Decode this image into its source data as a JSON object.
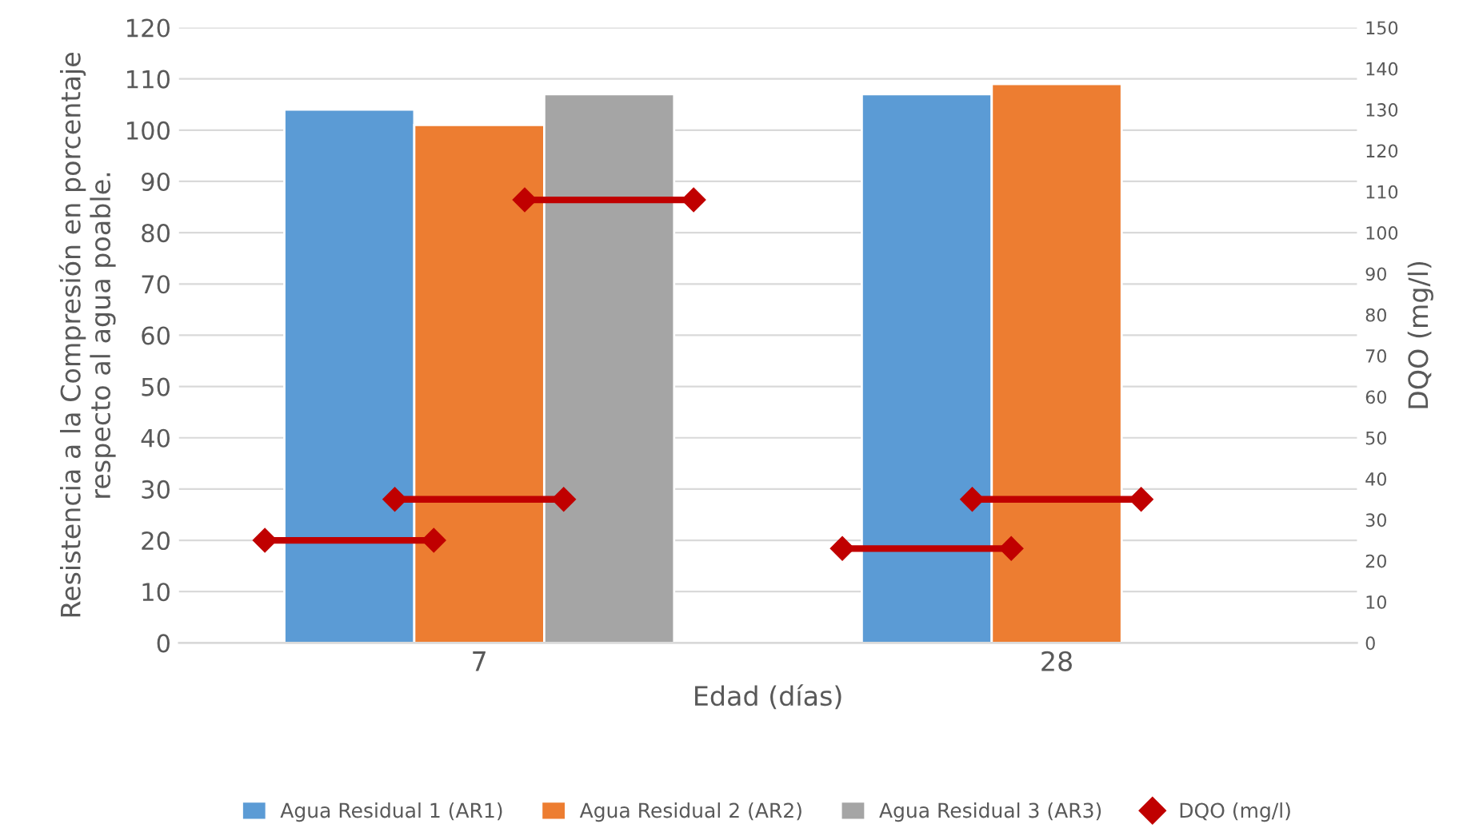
{
  "chart_data": {
    "type": "bar",
    "categories": [
      "7",
      "28"
    ],
    "xlabel": "Edad (días)",
    "ylabel": "Resistencia a la Compresión en porcentaje\nrespecto al agua poable.",
    "y2label": "DQO (mg/l)",
    "series": [
      {
        "name": "Agua Residual 1 (AR1)",
        "color": "#5b9bd5",
        "values": [
          104,
          107
        ]
      },
      {
        "name": "Agua Residual 2 (AR2)",
        "color": "#ed7d31",
        "values": [
          101,
          109
        ]
      },
      {
        "name": "Agua Residual 3 (AR3)",
        "color": "#a5a5a5",
        "values": [
          107,
          null
        ]
      },
      {
        "name": "DQO (mg/l)",
        "type": "scatter",
        "axis": "y2",
        "color": "#c00000",
        "marker": "diamond",
        "x": [
          "7",
          "7",
          "7",
          "28",
          "28"
        ],
        "values": [
          25,
          35,
          108,
          23,
          35
        ]
      }
    ],
    "ylim": [
      0,
      120
    ],
    "yticks": [
      0,
      10,
      20,
      30,
      40,
      50,
      60,
      70,
      80,
      90,
      100,
      110,
      120
    ],
    "y2lim": [
      0,
      150
    ],
    "y2ticks": [
      0,
      10,
      20,
      30,
      40,
      50,
      60,
      70,
      80,
      90,
      100,
      110,
      120,
      130,
      140,
      150
    ],
    "grid": "y",
    "legend": "bottom"
  }
}
